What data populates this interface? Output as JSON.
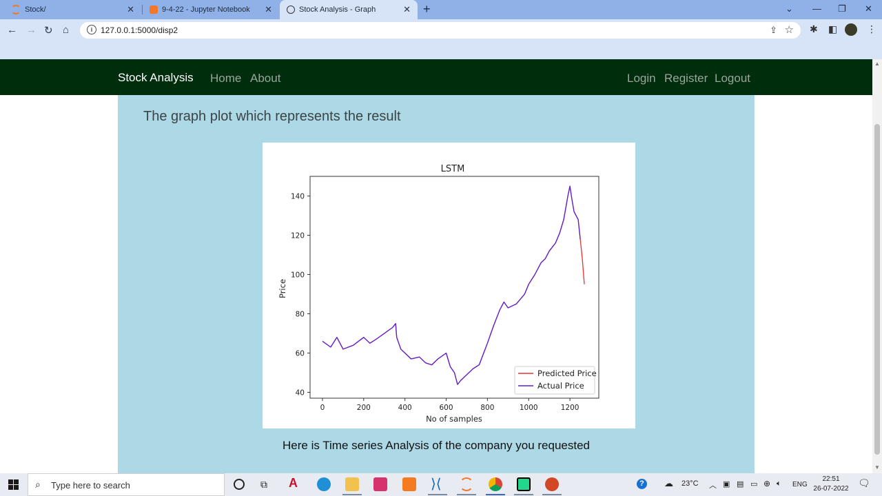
{
  "browser": {
    "tabs": [
      {
        "title": "Stock/",
        "active": false
      },
      {
        "title": "9-4-22 - Jupyter Notebook",
        "active": false
      },
      {
        "title": "Stock Analysis - Graph",
        "active": true
      }
    ],
    "url": "127.0.0.1:5000/disp2"
  },
  "site": {
    "brand": "Stock Analysis",
    "nav_left": [
      "Home",
      "About"
    ],
    "nav_right": [
      "Login",
      "Register",
      "Logout"
    ],
    "heading": "The graph plot which represents the result",
    "caption": "Here is Time series Analysis of the company you requested"
  },
  "chart_data": {
    "type": "line",
    "title": "LSTM",
    "xlabel": "No of samples",
    "ylabel": "Price",
    "xlim": [
      -60,
      1340
    ],
    "ylim": [
      37,
      150
    ],
    "xticks": [
      0,
      200,
      400,
      600,
      800,
      1000,
      1200
    ],
    "yticks": [
      40,
      60,
      80,
      100,
      120,
      140
    ],
    "legend_position": "lower-right",
    "series": [
      {
        "name": "Predicted Price",
        "color": "#e6322e",
        "x": [
          0,
          40,
          70,
          100,
          150,
          200,
          230,
          260,
          300,
          340,
          355,
          360,
          380,
          400,
          430,
          470,
          500,
          530,
          560,
          600,
          620,
          640,
          655,
          670,
          700,
          730,
          760,
          800,
          830,
          860,
          880,
          900,
          940,
          980,
          1000,
          1030,
          1060,
          1080,
          1100,
          1130,
          1150,
          1170,
          1190,
          1200,
          1210,
          1220,
          1240,
          1250,
          1260,
          1270
        ],
        "values": [
          66,
          63,
          68,
          62,
          64,
          68,
          65,
          67,
          70,
          73,
          75,
          68,
          62,
          60,
          57,
          58,
          55,
          54,
          57,
          60,
          53,
          50,
          44,
          46,
          49,
          52,
          54,
          65,
          74,
          82,
          86,
          83,
          85,
          90,
          95,
          100,
          106,
          108,
          112,
          116,
          121,
          128,
          140,
          145,
          138,
          132,
          128,
          118,
          108,
          95
        ]
      },
      {
        "name": "Actual Price",
        "color": "#5a1fd6",
        "x": [
          0,
          40,
          70,
          100,
          150,
          200,
          230,
          260,
          300,
          340,
          355,
          360,
          380,
          400,
          430,
          470,
          500,
          530,
          560,
          600,
          620,
          640,
          655,
          670,
          700,
          730,
          760,
          800,
          830,
          860,
          880,
          900,
          940,
          980,
          1000,
          1030,
          1060,
          1080,
          1100,
          1130,
          1150,
          1170,
          1190,
          1200,
          1210,
          1220,
          1240,
          1250
        ],
        "values": [
          66,
          63,
          68,
          62,
          64,
          68,
          65,
          67,
          70,
          73,
          75,
          68,
          62,
          60,
          57,
          58,
          55,
          54,
          57,
          60,
          53,
          50,
          44,
          46,
          49,
          52,
          54,
          65,
          74,
          82,
          86,
          83,
          85,
          90,
          95,
          100,
          106,
          108,
          112,
          116,
          121,
          128,
          140,
          145,
          138,
          132,
          128,
          118
        ]
      }
    ]
  },
  "taskbar": {
    "search_placeholder": "Type here to search",
    "weather": "23°C",
    "language": "ENG",
    "time": "22:51",
    "date": "26-07-2022"
  }
}
